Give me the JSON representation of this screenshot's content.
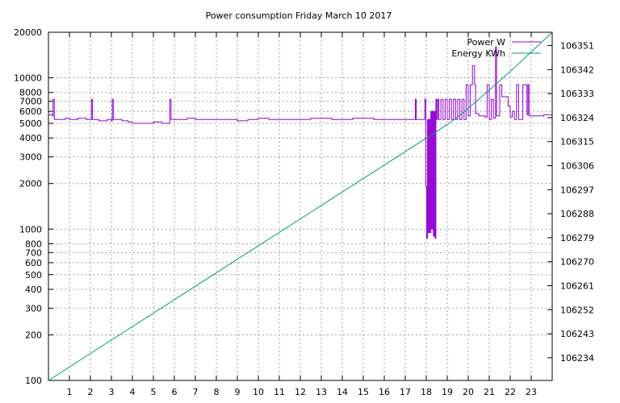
{
  "chart_data": {
    "type": "line",
    "title": "Power consumption Friday March 10 2017",
    "y_scale": "log",
    "ylim": [
      100,
      20000
    ],
    "xlim": [
      0,
      24
    ],
    "y2lim": [
      106225.5,
      106356
    ],
    "grid": true,
    "legend_position": "top-right",
    "x_ticks": [
      1,
      2,
      3,
      4,
      5,
      6,
      7,
      8,
      9,
      10,
      11,
      12,
      13,
      14,
      15,
      16,
      17,
      18,
      19,
      20,
      21,
      22,
      23
    ],
    "y_ticks": [
      100,
      200,
      300,
      400,
      500,
      600,
      700,
      800,
      1000,
      2000,
      3000,
      4000,
      5000,
      6000,
      7000,
      8000,
      10000,
      20000
    ],
    "y2_ticks": [
      106234,
      106243,
      106252,
      106261,
      106270,
      106279,
      106288,
      106297,
      106306,
      106315,
      106324,
      106333,
      106342,
      106351
    ],
    "series": [
      {
        "name": "Power W",
        "color": "#9400d3",
        "axis": "left",
        "points": [
          [
            0.0,
            5700
          ],
          [
            0.2,
            5600
          ],
          [
            0.22,
            7200
          ],
          [
            0.26,
            7200
          ],
          [
            0.28,
            5300
          ],
          [
            0.6,
            5300
          ],
          [
            0.8,
            5400
          ],
          [
            1.0,
            5300
          ],
          [
            1.4,
            5400
          ],
          [
            1.8,
            5300
          ],
          [
            2.0,
            5300
          ],
          [
            2.05,
            7200
          ],
          [
            2.08,
            7200
          ],
          [
            2.1,
            5300
          ],
          [
            2.4,
            5200
          ],
          [
            2.8,
            5300
          ],
          [
            3.0,
            5200
          ],
          [
            3.04,
            7200
          ],
          [
            3.07,
            7200
          ],
          [
            3.09,
            5300
          ],
          [
            3.5,
            5200
          ],
          [
            3.8,
            5100
          ],
          [
            4.0,
            5000
          ],
          [
            4.5,
            5000
          ],
          [
            5.0,
            5100
          ],
          [
            5.4,
            5000
          ],
          [
            5.76,
            5000
          ],
          [
            5.78,
            7200
          ],
          [
            5.82,
            7200
          ],
          [
            5.84,
            5300
          ],
          [
            6.2,
            5300
          ],
          [
            6.6,
            5400
          ],
          [
            7.0,
            5300
          ],
          [
            7.5,
            5300
          ],
          [
            8.0,
            5300
          ],
          [
            8.5,
            5300
          ],
          [
            9.0,
            5200
          ],
          [
            9.5,
            5300
          ],
          [
            10.0,
            5400
          ],
          [
            10.5,
            5300
          ],
          [
            11.0,
            5300
          ],
          [
            11.5,
            5300
          ],
          [
            12.0,
            5300
          ],
          [
            12.5,
            5400
          ],
          [
            13.0,
            5400
          ],
          [
            13.5,
            5300
          ],
          [
            14.0,
            5300
          ],
          [
            14.5,
            5400
          ],
          [
            15.0,
            5400
          ],
          [
            15.5,
            5300
          ],
          [
            16.0,
            5300
          ],
          [
            16.5,
            5300
          ],
          [
            17.0,
            5300
          ],
          [
            17.4,
            5300
          ],
          [
            17.48,
            7200
          ],
          [
            17.5,
            7200
          ],
          [
            17.52,
            5300
          ],
          [
            17.9,
            5300
          ],
          [
            17.93,
            7200
          ],
          [
            17.96,
            7200
          ],
          [
            17.98,
            1900
          ],
          [
            18.02,
            870
          ],
          [
            18.06,
            5300
          ],
          [
            18.1,
            950
          ],
          [
            18.14,
            5300
          ],
          [
            18.18,
            950
          ],
          [
            18.22,
            6000
          ],
          [
            18.26,
            1000
          ],
          [
            18.3,
            6000
          ],
          [
            18.34,
            900
          ],
          [
            18.38,
            6000
          ],
          [
            18.42,
            870
          ],
          [
            18.46,
            7200
          ],
          [
            18.5,
            5300
          ],
          [
            18.55,
            7200
          ],
          [
            18.6,
            5300
          ],
          [
            18.7,
            7200
          ],
          [
            18.8,
            5300
          ],
          [
            18.9,
            7200
          ],
          [
            19.0,
            5300
          ],
          [
            19.1,
            7200
          ],
          [
            19.2,
            5300
          ],
          [
            19.3,
            7200
          ],
          [
            19.4,
            5300
          ],
          [
            19.5,
            7200
          ],
          [
            19.6,
            5300
          ],
          [
            19.7,
            7200
          ],
          [
            19.8,
            5300
          ],
          [
            19.9,
            9000
          ],
          [
            20.0,
            5600
          ],
          [
            20.1,
            9000
          ],
          [
            20.2,
            12000
          ],
          [
            20.3,
            9000
          ],
          [
            20.35,
            5800
          ],
          [
            20.5,
            5600
          ],
          [
            20.8,
            5500
          ],
          [
            20.9,
            9000
          ],
          [
            21.0,
            5300
          ],
          [
            21.1,
            7200
          ],
          [
            21.2,
            5400
          ],
          [
            21.3,
            16000
          ],
          [
            21.35,
            5600
          ],
          [
            21.5,
            9000
          ],
          [
            21.6,
            7500
          ],
          [
            21.8,
            7500
          ],
          [
            21.9,
            6500
          ],
          [
            22.0,
            5500
          ],
          [
            22.1,
            6000
          ],
          [
            22.2,
            5300
          ],
          [
            22.3,
            9000
          ],
          [
            22.4,
            5300
          ],
          [
            22.6,
            9000
          ],
          [
            22.8,
            5700
          ],
          [
            22.85,
            9000
          ],
          [
            22.9,
            5600
          ],
          [
            23.3,
            5600
          ],
          [
            23.6,
            5700
          ],
          [
            24.0,
            5700
          ]
        ]
      },
      {
        "name": "Energy KWh",
        "color": "#009e73",
        "axis": "right",
        "points": [
          [
            0,
            106225.5
          ],
          [
            17.8,
            106315.3
          ],
          [
            18.7,
            106319.8
          ],
          [
            19.5,
            106324.2
          ],
          [
            20.0,
            106327.5
          ],
          [
            21.0,
            106334.3
          ],
          [
            22.0,
            106341.3
          ],
          [
            23.0,
            106348.6
          ],
          [
            24.0,
            106356.0
          ]
        ]
      }
    ]
  }
}
